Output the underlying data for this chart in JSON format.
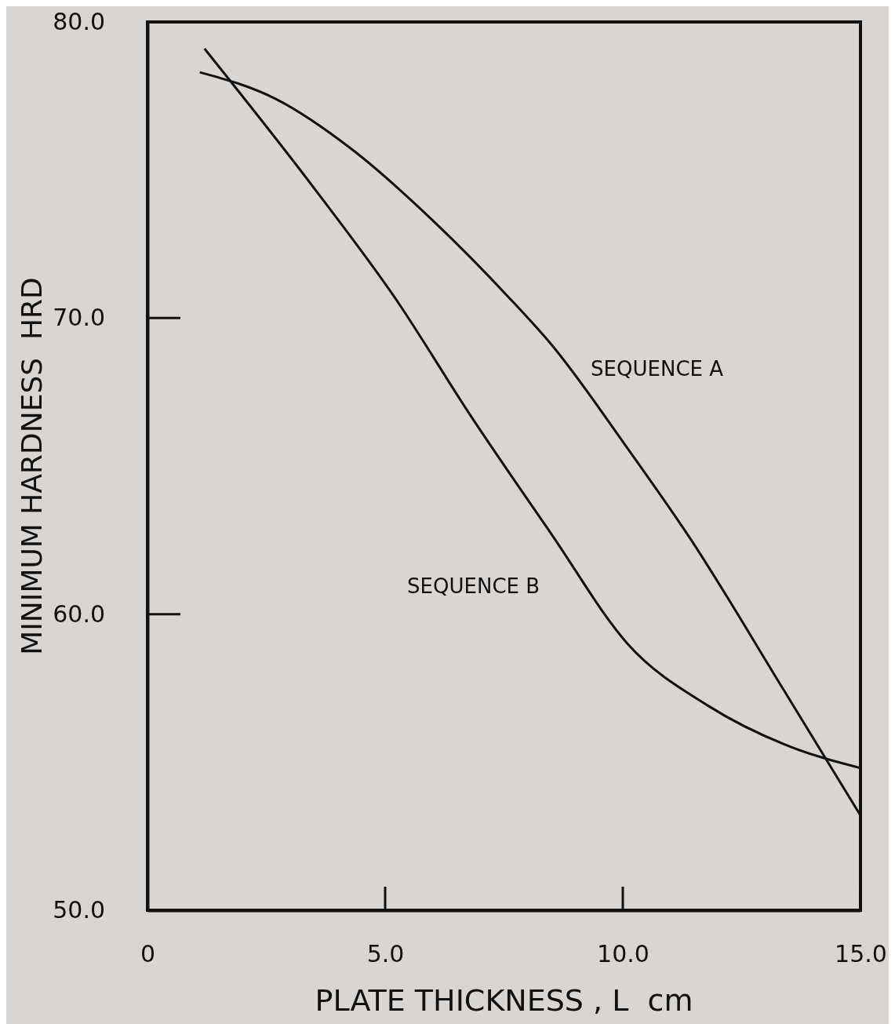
{
  "chart_data": {
    "type": "line",
    "xlabel": "PLATE THICKNESS , L  cm",
    "ylabel": "MINIMUM HARDNESS  HRD",
    "xlim": [
      0,
      15
    ],
    "ylim": [
      50,
      80
    ],
    "xticks": [
      0,
      {
        "value": 5,
        "label": "5.0"
      },
      {
        "value": 10,
        "label": "10.0"
      },
      {
        "value": 15,
        "label": "15.0"
      }
    ],
    "yticks": [
      {
        "value": 50,
        "label": "50.0"
      },
      {
        "value": 60,
        "label": "60.0"
      },
      {
        "value": 70,
        "label": "70.0"
      },
      {
        "value": 80,
        "label": "80.0"
      }
    ],
    "grid": false,
    "marker": "none",
    "line_style": "solid",
    "series": [
      {
        "name": "SEQUENCE A",
        "color": "#111111",
        "x": [
          1.1,
          2.7,
          4.3,
          6.0,
          7.6,
          8.5,
          10.1,
          11.4,
          13.4,
          15.0
        ],
        "values": [
          78.3,
          77.4,
          75.7,
          73.3,
          70.7,
          69.1,
          65.6,
          62.6,
          57.4,
          53.2
        ]
      },
      {
        "name": "SEQUENCE B",
        "color": "#111111",
        "x": [
          1.2,
          3.5,
          5.2,
          6.8,
          8.5,
          10.1,
          11.8,
          13.4,
          15.0
        ],
        "values": [
          79.1,
          74.4,
          70.7,
          66.7,
          62.7,
          59.0,
          56.9,
          55.6,
          54.8
        ]
      }
    ]
  }
}
